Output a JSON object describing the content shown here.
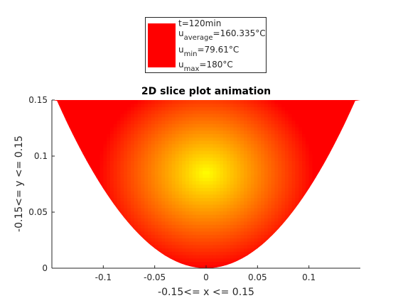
{
  "chart_data": {
    "type": "heatmap",
    "title": "2D slice plot animation",
    "xlabel": "-0.15<= x <= 0.15",
    "ylabel": "-0.15<= y <= 0.15",
    "xlim": [
      -0.15,
      0.15
    ],
    "ylim": [
      0,
      0.15
    ],
    "xticks": [
      -0.1,
      -0.05,
      0,
      0.05,
      0.1
    ],
    "xtick_labels": [
      "-0.1",
      "-0.05",
      "0",
      "0.05",
      "0.1"
    ],
    "yticks": [
      0,
      0.05,
      0.1,
      0.15
    ],
    "ytick_labels": [
      "0",
      "0.05",
      "0.1",
      "0.15"
    ],
    "grid": false,
    "legend_position": "top-center",
    "colormap": "autumn",
    "color_low": "#ff0000",
    "color_high": "#ffff00",
    "field": {
      "value_min": 79.61,
      "value_max": 180,
      "value_average": 160.335,
      "hot_spot": [
        0,
        0.085
      ],
      "region": "parabolic cross-section, y >= 7.1 * x^2"
    },
    "legend": {
      "swatch_color": "#ff0000",
      "time": "t=120min",
      "avg_prefix": "u",
      "avg_sub": "average",
      "avg_value": "=160.335°C",
      "min_prefix": "u",
      "min_sub": "min",
      "min_value": "=79.61°C",
      "max_prefix": "u",
      "max_sub": "max",
      "max_value": "=180°C"
    }
  }
}
